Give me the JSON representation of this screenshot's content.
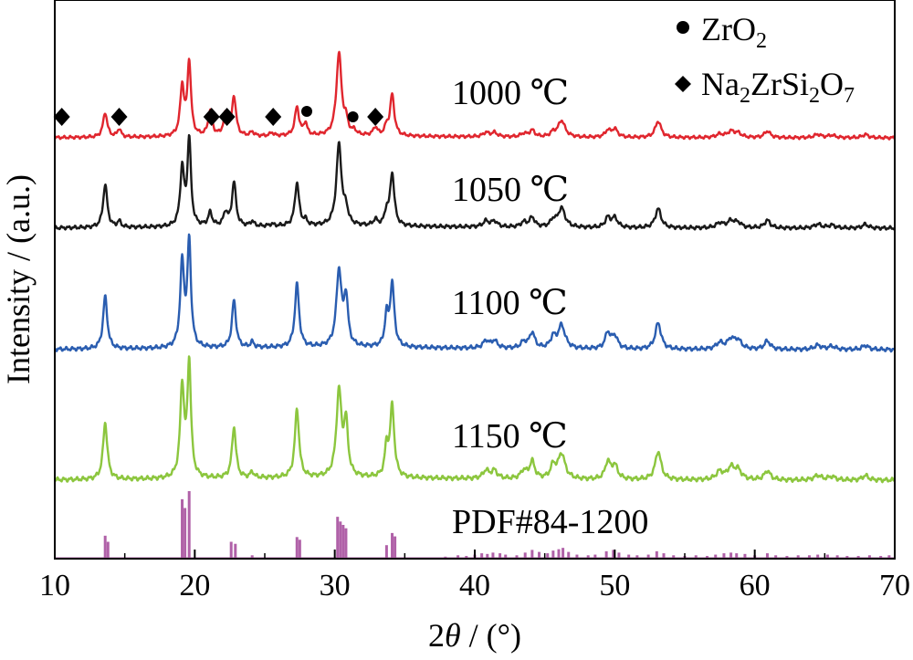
{
  "chart_data": {
    "type": "line",
    "title": "",
    "xlabel": "2θ / (°)",
    "xlabel_parts": {
      "pre": "2",
      "theta": "θ",
      "post": " / (°)"
    },
    "ylabel": "Intensity / (a.u.)",
    "xlim": [
      10,
      70
    ],
    "xticks": [
      10,
      20,
      30,
      40,
      50,
      60,
      70
    ],
    "colors": {
      "1000": "#e0262e",
      "1050": "#1a1a1a",
      "1100": "#2a5db0",
      "1150": "#8cc63e",
      "pdf": "#b061a8"
    },
    "legend": {
      "placement": "top-right",
      "entries": [
        {
          "symbol": "circle",
          "base": "ZrO",
          "sub1": "2",
          "mid": "",
          "sub2": "",
          "end": "",
          "sub3": ""
        },
        {
          "symbol": "diamond",
          "base": "Na",
          "sub1": "2",
          "mid": "ZrSi",
          "sub2": "2",
          "end": "O",
          "sub3": "7"
        }
      ]
    },
    "peaks": [
      {
        "pos": 13.6,
        "w": 0.18,
        "h": [
          0.3,
          0.45,
          0.5,
          0.5
        ]
      },
      {
        "pos": 14.6,
        "w": 0.15,
        "h": [
          0.1,
          0.06,
          0.0,
          0.0
        ]
      },
      {
        "pos": 19.1,
        "w": 0.17,
        "h": [
          0.6,
          0.6,
          0.8,
          0.8
        ]
      },
      {
        "pos": 19.6,
        "w": 0.15,
        "h": [
          0.9,
          0.9,
          1.0,
          1.0
        ]
      },
      {
        "pos": 21.1,
        "w": 0.17,
        "h": [
          0.3,
          0.14,
          0.0,
          0.0
        ]
      },
      {
        "pos": 22.2,
        "w": 0.17,
        "h": [
          0.26,
          0.14,
          0.0,
          0.0
        ]
      },
      {
        "pos": 22.8,
        "w": 0.17,
        "h": [
          0.48,
          0.46,
          0.45,
          0.45
        ]
      },
      {
        "pos": 24.1,
        "w": 0.15,
        "h": [
          0.05,
          0.05,
          0.05,
          0.05
        ]
      },
      {
        "pos": 25.5,
        "w": 0.15,
        "h": [
          0.04,
          0.02,
          0.0,
          0.0
        ]
      },
      {
        "pos": 27.3,
        "w": 0.18,
        "h": [
          0.35,
          0.45,
          0.6,
          0.6
        ]
      },
      {
        "pos": 27.9,
        "w": 0.15,
        "h": [
          0.15,
          0.05,
          0.0,
          0.0
        ]
      },
      {
        "pos": 30.3,
        "w": 0.22,
        "h": [
          1.0,
          0.85,
          0.72,
          0.75
        ]
      },
      {
        "pos": 30.8,
        "w": 0.17,
        "h": [
          0.15,
          0.15,
          0.45,
          0.45
        ]
      },
      {
        "pos": 31.4,
        "w": 0.15,
        "h": [
          0.05,
          0.0,
          0.0,
          0.0
        ]
      },
      {
        "pos": 32.9,
        "w": 0.18,
        "h": [
          0.1,
          0.06,
          0.0,
          0.0
        ]
      },
      {
        "pos": 33.7,
        "w": 0.15,
        "h": [
          0.1,
          0.14,
          0.28,
          0.25
        ]
      },
      {
        "pos": 34.1,
        "w": 0.18,
        "h": [
          0.5,
          0.55,
          0.6,
          0.62
        ]
      },
      {
        "pos": 40.8,
        "w": 0.25,
        "h": [
          0.05,
          0.06,
          0.07,
          0.07
        ]
      },
      {
        "pos": 41.4,
        "w": 0.25,
        "h": [
          0.05,
          0.06,
          0.07,
          0.07
        ]
      },
      {
        "pos": 43.5,
        "w": 0.25,
        "h": [
          0.04,
          0.05,
          0.06,
          0.07
        ]
      },
      {
        "pos": 44.1,
        "w": 0.22,
        "h": [
          0.08,
          0.1,
          0.15,
          0.15
        ]
      },
      {
        "pos": 45.6,
        "w": 0.22,
        "h": [
          0.05,
          0.07,
          0.1,
          0.11
        ]
      },
      {
        "pos": 46.2,
        "w": 0.3,
        "h": [
          0.2,
          0.2,
          0.22,
          0.22
        ]
      },
      {
        "pos": 49.5,
        "w": 0.22,
        "h": [
          0.08,
          0.1,
          0.15,
          0.15
        ]
      },
      {
        "pos": 50.0,
        "w": 0.25,
        "h": [
          0.1,
          0.1,
          0.12,
          0.12
        ]
      },
      {
        "pos": 53.1,
        "w": 0.25,
        "h": [
          0.2,
          0.2,
          0.25,
          0.25
        ]
      },
      {
        "pos": 57.5,
        "w": 0.3,
        "h": [
          0.04,
          0.05,
          0.06,
          0.07
        ]
      },
      {
        "pos": 58.3,
        "w": 0.3,
        "h": [
          0.07,
          0.07,
          0.09,
          0.1
        ]
      },
      {
        "pos": 58.8,
        "w": 0.3,
        "h": [
          0.05,
          0.05,
          0.08,
          0.08
        ]
      },
      {
        "pos": 60.9,
        "w": 0.25,
        "h": [
          0.08,
          0.08,
          0.08,
          0.08
        ]
      },
      {
        "pos": 64.5,
        "w": 0.3,
        "h": [
          0.04,
          0.04,
          0.04,
          0.04
        ]
      },
      {
        "pos": 65.5,
        "w": 0.3,
        "h": [
          0.03,
          0.03,
          0.03,
          0.03
        ]
      },
      {
        "pos": 67.9,
        "w": 0.25,
        "h": [
          0.04,
          0.04,
          0.04,
          0.04
        ]
      }
    ],
    "series": [
      {
        "name": "1000 ℃",
        "key": "1000",
        "peak_height_index": 0,
        "scale": 0.8
      },
      {
        "name": "1050 ℃",
        "key": "1050",
        "peak_height_index": 1,
        "scale": 0.73
      },
      {
        "name": "1100 ℃",
        "key": "1100",
        "peak_height_index": 2,
        "scale": 0.8
      },
      {
        "name": "1150 ℃",
        "key": "1150",
        "peak_height_index": 3,
        "scale": 0.8
      }
    ],
    "reference": {
      "name": "PDF#84-1200",
      "lines": [
        [
          11.7,
          0.02
        ],
        [
          13.6,
          0.34
        ],
        [
          13.8,
          0.25
        ],
        [
          19.1,
          0.88
        ],
        [
          19.3,
          0.75
        ],
        [
          19.6,
          1.0
        ],
        [
          22.6,
          0.25
        ],
        [
          22.9,
          0.22
        ],
        [
          24.1,
          0.05
        ],
        [
          27.3,
          0.32
        ],
        [
          27.5,
          0.28
        ],
        [
          30.2,
          0.62
        ],
        [
          30.4,
          0.55
        ],
        [
          30.6,
          0.5
        ],
        [
          30.8,
          0.45
        ],
        [
          33.7,
          0.2
        ],
        [
          34.1,
          0.38
        ],
        [
          34.3,
          0.33
        ],
        [
          36.0,
          0.02
        ],
        [
          37.9,
          0.03
        ],
        [
          38.8,
          0.05
        ],
        [
          39.4,
          0.04
        ],
        [
          40.0,
          0.06
        ],
        [
          40.5,
          0.08
        ],
        [
          40.9,
          0.07
        ],
        [
          41.3,
          0.09
        ],
        [
          41.8,
          0.08
        ],
        [
          42.2,
          0.06
        ],
        [
          43.0,
          0.05
        ],
        [
          43.6,
          0.09
        ],
        [
          44.1,
          0.13
        ],
        [
          44.6,
          0.1
        ],
        [
          45.2,
          0.08
        ],
        [
          45.6,
          0.12
        ],
        [
          46.0,
          0.14
        ],
        [
          46.3,
          0.16
        ],
        [
          46.7,
          0.1
        ],
        [
          47.3,
          0.06
        ],
        [
          48.1,
          0.05
        ],
        [
          48.6,
          0.06
        ],
        [
          49.4,
          0.11
        ],
        [
          49.9,
          0.13
        ],
        [
          50.3,
          0.09
        ],
        [
          51.0,
          0.06
        ],
        [
          51.6,
          0.05
        ],
        [
          52.4,
          0.06
        ],
        [
          53.0,
          0.11
        ],
        [
          53.5,
          0.08
        ],
        [
          54.2,
          0.05
        ],
        [
          55.0,
          0.04
        ],
        [
          55.8,
          0.05
        ],
        [
          56.6,
          0.04
        ],
        [
          57.2,
          0.06
        ],
        [
          57.8,
          0.08
        ],
        [
          58.3,
          0.09
        ],
        [
          58.7,
          0.08
        ],
        [
          59.3,
          0.07
        ],
        [
          60.0,
          0.05
        ],
        [
          60.9,
          0.08
        ],
        [
          61.5,
          0.05
        ],
        [
          62.3,
          0.04
        ],
        [
          63.1,
          0.05
        ],
        [
          63.9,
          0.05
        ],
        [
          64.5,
          0.06
        ],
        [
          65.2,
          0.06
        ],
        [
          65.9,
          0.05
        ],
        [
          66.6,
          0.04
        ],
        [
          67.4,
          0.04
        ],
        [
          68.2,
          0.05
        ],
        [
          69.0,
          0.04
        ],
        [
          69.6,
          0.05
        ]
      ]
    },
    "markers": [
      {
        "symbol": "diamond",
        "x": 10.5
      },
      {
        "symbol": "diamond",
        "x": 14.6
      },
      {
        "symbol": "diamond",
        "x": 21.2
      },
      {
        "symbol": "diamond",
        "x": 22.3
      },
      {
        "symbol": "diamond",
        "x": 25.6
      },
      {
        "symbol": "circle",
        "x": 28.0
      },
      {
        "symbol": "circle",
        "x": 31.3
      },
      {
        "symbol": "diamond",
        "x": 32.9
      }
    ]
  }
}
